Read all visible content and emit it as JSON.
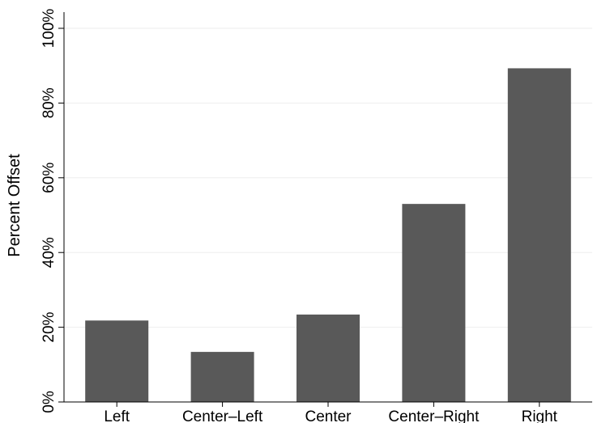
{
  "chart_data": {
    "type": "bar",
    "categories": [
      "Left",
      "Center–Left",
      "Center",
      "Center–Right",
      "Right"
    ],
    "values": [
      21.8,
      13.4,
      23.4,
      53.0,
      89.3
    ],
    "ylabel": "Percent Offset",
    "xlabel": "",
    "ylim": [
      0,
      100
    ],
    "yticks": [
      0,
      20,
      40,
      60,
      80,
      100
    ],
    "ytick_labels": [
      "0%",
      "20%",
      "40%",
      "60%",
      "80%",
      "100%"
    ],
    "grid": true,
    "legend": "none",
    "colors": {
      "bar": "#595959",
      "grid": "#eeeeee",
      "axis": "#000000"
    }
  }
}
